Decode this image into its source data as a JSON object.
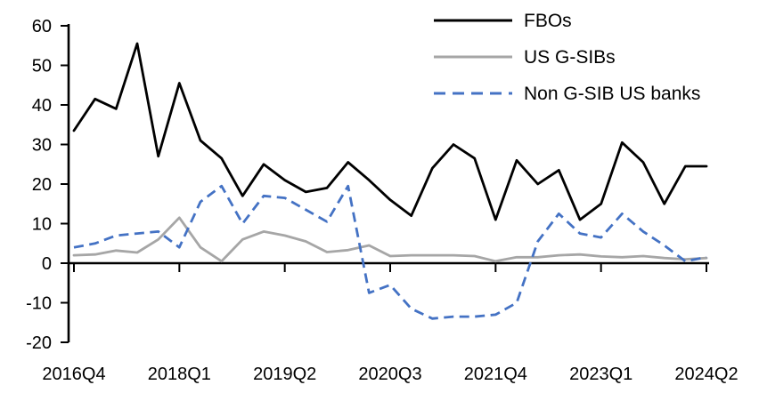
{
  "chart_data": {
    "type": "line",
    "title": "",
    "xlabel": "",
    "ylabel": "",
    "grid": false,
    "legend_position": "top-right",
    "ylim": [
      -20,
      60
    ],
    "y_ticks": [
      60,
      50,
      40,
      30,
      20,
      10,
      0,
      -10,
      -20
    ],
    "x_tick_labels": [
      "2016Q4",
      "2018Q1",
      "2019Q2",
      "2020Q3",
      "2021Q4",
      "2023Q1",
      "2024Q2"
    ],
    "x_tick_indices": [
      0,
      5,
      10,
      15,
      20,
      25,
      30
    ],
    "categories": [
      "2016Q4",
      "2017Q1",
      "2017Q2",
      "2017Q3",
      "2017Q4",
      "2018Q1",
      "2018Q2",
      "2018Q3",
      "2018Q4",
      "2019Q1",
      "2019Q2",
      "2019Q3",
      "2019Q4",
      "2020Q1",
      "2020Q2",
      "2020Q3",
      "2020Q4",
      "2021Q1",
      "2021Q2",
      "2021Q3",
      "2021Q4",
      "2022Q1",
      "2022Q2",
      "2022Q3",
      "2022Q4",
      "2023Q1",
      "2023Q2",
      "2023Q3",
      "2023Q4",
      "2024Q1",
      "2024Q2"
    ],
    "series": [
      {
        "name": "FBOs",
        "color": "#000000",
        "style": "solid",
        "values": [
          33.5,
          41.5,
          39,
          55.5,
          27,
          45.5,
          31,
          26.5,
          17,
          25,
          21,
          18,
          19,
          25.5,
          21,
          16,
          12,
          24,
          30,
          26.5,
          11,
          26,
          20,
          23.5,
          11,
          15,
          30.5,
          25.5,
          15,
          24.5,
          24.5
        ]
      },
      {
        "name": "US G-SIBs",
        "color": "#a6a6a6",
        "style": "solid",
        "values": [
          2,
          2.2,
          3.2,
          2.7,
          6,
          11.5,
          4,
          0.5,
          6,
          8,
          7,
          5.5,
          2.8,
          3.3,
          4.5,
          1.8,
          2,
          2,
          2,
          1.8,
          0.5,
          1.5,
          1.5,
          2,
          2.2,
          1.7,
          1.5,
          1.8,
          1.3,
          1,
          1.3
        ]
      },
      {
        "name": "Non G-SIB US banks",
        "color": "#4472c4",
        "style": "dashed",
        "values": [
          4,
          5,
          7,
          7.5,
          8,
          4,
          15.5,
          19.5,
          10,
          17,
          16.5,
          13.5,
          10.5,
          19.5,
          -7.5,
          -5.5,
          -11.5,
          -14,
          -13.5,
          -13.5,
          -13,
          -10,
          5.5,
          12.5,
          7.5,
          6.5,
          12.5,
          8,
          4.5,
          0.5,
          1.5
        ]
      }
    ]
  }
}
